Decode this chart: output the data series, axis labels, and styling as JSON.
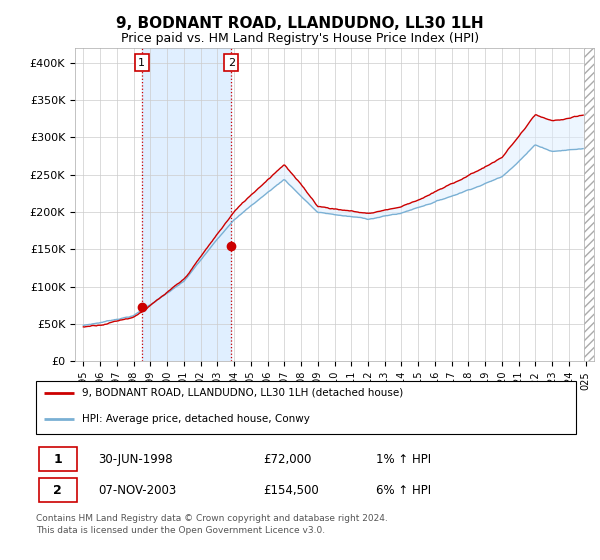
{
  "title": "9, BODNANT ROAD, LLANDUDNO, LL30 1LH",
  "subtitle": "Price paid vs. HM Land Registry's House Price Index (HPI)",
  "ylim": [
    0,
    420000
  ],
  "yticks": [
    0,
    50000,
    100000,
    150000,
    200000,
    250000,
    300000,
    350000,
    400000
  ],
  "ytick_labels": [
    "£0",
    "£50K",
    "£100K",
    "£150K",
    "£200K",
    "£250K",
    "£300K",
    "£350K",
    "£400K"
  ],
  "xticks": [
    1995,
    1996,
    1997,
    1998,
    1999,
    2000,
    2001,
    2002,
    2003,
    2004,
    2005,
    2006,
    2007,
    2008,
    2009,
    2010,
    2011,
    2012,
    2013,
    2014,
    2015,
    2016,
    2017,
    2018,
    2019,
    2020,
    2021,
    2022,
    2023,
    2024,
    2025
  ],
  "sale1_date": 1998.49,
  "sale1_price": 72000,
  "sale2_date": 2003.84,
  "sale2_price": 154500,
  "sale1_date_str": "30-JUN-1998",
  "sale1_price_str": "£72,000",
  "sale1_hpi_str": "1% ↑ HPI",
  "sale2_date_str": "07-NOV-2003",
  "sale2_price_str": "£154,500",
  "sale2_hpi_str": "6% ↑ HPI",
  "line_red_color": "#cc0000",
  "line_blue_color": "#7ab0d4",
  "fill_color": "#ddeeff",
  "grid_color": "#cccccc",
  "title_fontsize": 11,
  "subtitle_fontsize": 9,
  "legend_line1": "9, BODNANT ROAD, LLANDUDNO, LL30 1LH (detached house)",
  "legend_line2": "HPI: Average price, detached house, Conwy",
  "footer": "Contains HM Land Registry data © Crown copyright and database right 2024.\nThis data is licensed under the Open Government Licence v3.0."
}
